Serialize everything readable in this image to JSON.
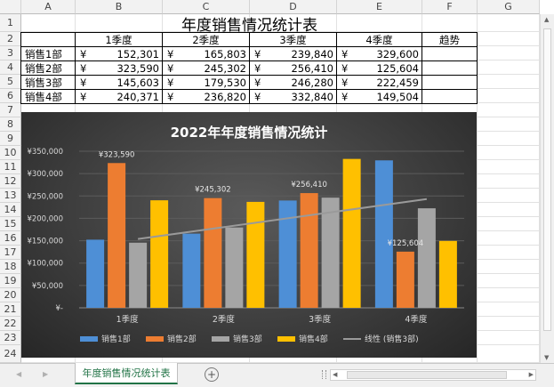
{
  "sheet": {
    "columns": [
      "A",
      "B",
      "C",
      "D",
      "E",
      "F",
      "G"
    ],
    "rows": [
      "1",
      "2",
      "3",
      "4",
      "5",
      "6",
      "7",
      "8",
      "9",
      "10",
      "11",
      "12",
      "13",
      "14",
      "15",
      "16",
      "17",
      "18",
      "19",
      "20",
      "21",
      "22",
      "23",
      "24"
    ],
    "title": "年度销售情况统计表",
    "headers": [
      "1季度",
      "2季度",
      "3季度",
      "4季度",
      "趋势"
    ],
    "currency": "¥",
    "data": [
      {
        "dept": "销售1部",
        "values": [
          "152,301",
          "165,803",
          "239,840",
          "329,600"
        ]
      },
      {
        "dept": "销售2部",
        "values": [
          "323,590",
          "245,302",
          "256,410",
          "125,604"
        ]
      },
      {
        "dept": "销售3部",
        "values": [
          "145,603",
          "179,530",
          "246,280",
          "222,459"
        ]
      },
      {
        "dept": "销售4部",
        "values": [
          "240,371",
          "236,820",
          "332,840",
          "149,504"
        ]
      }
    ]
  },
  "chart_data": {
    "type": "bar",
    "title": "2022年年度销售情况统计",
    "categories": [
      "1季度",
      "2季度",
      "3季度",
      "4季度"
    ],
    "series": [
      {
        "name": "销售1部",
        "values": [
          152301,
          165803,
          239840,
          329600
        ],
        "color": "#4e8fd6"
      },
      {
        "name": "销售2部",
        "values": [
          323590,
          245302,
          256410,
          125604
        ],
        "color": "#ed7d31"
      },
      {
        "name": "销售3部",
        "values": [
          145603,
          179530,
          246280,
          222459
        ],
        "color": "#a5a5a5"
      },
      {
        "name": "销售4部",
        "values": [
          240371,
          236820,
          332840,
          149504
        ],
        "color": "#ffc000"
      }
    ],
    "trendline": {
      "name": "线性 (销售3部)",
      "color": "#9a9a9a"
    },
    "y_ticks": [
      "¥-",
      "¥50,000",
      "¥100,000",
      "¥150,000",
      "¥200,000",
      "¥250,000",
      "¥300,000",
      "¥350,000"
    ],
    "ylim": [
      0,
      350000
    ],
    "data_labels": [
      {
        "series": 1,
        "category": 0,
        "text": "¥323,590"
      },
      {
        "series": 1,
        "category": 1,
        "text": "¥245,302"
      },
      {
        "series": 1,
        "category": 2,
        "text": "¥256,410"
      },
      {
        "series": 1,
        "category": 3,
        "text": "¥125,604"
      }
    ],
    "grid": true,
    "legend": "bottom"
  },
  "tabs": {
    "active": "年度销售情况统计表",
    "add_symbol": "+",
    "prev_symbol": "◀",
    "next_symbol": "▶"
  }
}
